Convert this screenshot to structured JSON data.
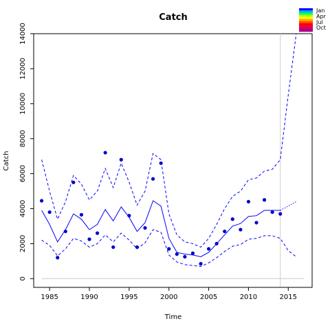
{
  "chart_data": {
    "type": "line",
    "title": "Catch",
    "xlabel": "Time",
    "ylabel": "Catch",
    "xlim": [
      1983,
      2018
    ],
    "ylim": [
      -500,
      14000
    ],
    "x_ticks": [
      1985,
      1990,
      1995,
      2000,
      2005,
      2010,
      2015
    ],
    "y_ticks": [
      0,
      2000,
      4000,
      6000,
      8000,
      10000,
      12000,
      14000
    ],
    "grid": false,
    "reference_lines": {
      "horizontal_y": 0,
      "vertical_x": 2014
    },
    "legend": {
      "placement": "top-right",
      "entries": [
        "Jan",
        "Apr",
        "Jul",
        "Oct"
      ],
      "colors": [
        "#0000ff",
        "#00aaff",
        "#00ff66",
        "#aaff00",
        "#ffff00",
        "#ffaa00",
        "#ff5500",
        "#ff0000",
        "#ee0044",
        "#cc0066",
        "#aa0088"
      ]
    },
    "series": [
      {
        "name": "",
        "style": "points",
        "color": "#0000cc",
        "x": [
          1984,
          1985,
          1986,
          1987,
          1988,
          1989,
          1990,
          1991,
          1992,
          1993,
          1994,
          1995,
          1996,
          1997,
          1998,
          1999,
          2000,
          2001,
          2002,
          2003,
          2004,
          2005,
          2006,
          2007,
          2008,
          2009,
          2010,
          2011,
          2012,
          2013,
          2014
        ],
        "values": [
          4450,
          3800,
          1200,
          2700,
          5500,
          3650,
          2250,
          2600,
          7200,
          1800,
          6800,
          3600,
          1800,
          2900,
          5700,
          6600,
          1700,
          1400,
          1250,
          1450,
          850,
          1700,
          2000,
          2700,
          3400,
          2800,
          4400,
          3200,
          4500,
          3800,
          3700
        ]
      },
      {
        "name": "",
        "style": "solid",
        "color": "#0000ff",
        "x": [
          1984,
          1985,
          1986,
          1987,
          1988,
          1989,
          1990,
          1991,
          1992,
          1993,
          1994,
          1995,
          1996,
          1997,
          1998,
          1999,
          2000,
          2001,
          2002,
          2003,
          2004,
          2005,
          2006,
          2007,
          2008,
          2009,
          2010,
          2011,
          2012,
          2013,
          2014
        ],
        "values": [
          3900,
          3100,
          2100,
          2800,
          3700,
          3400,
          2800,
          3100,
          3950,
          3300,
          4100,
          3500,
          2700,
          3200,
          4450,
          4150,
          2300,
          1500,
          1400,
          1350,
          1250,
          1500,
          2000,
          2500,
          3000,
          3150,
          3550,
          3600,
          3900,
          3900,
          3900
        ]
      },
      {
        "name": "",
        "style": "dashed",
        "color": "#0000ff",
        "x": [
          1984,
          1985,
          1986,
          1987,
          1988,
          1989,
          1990,
          1991,
          1992,
          1993,
          1994,
          1995,
          1996,
          1997,
          1998,
          1999,
          2000,
          2001,
          2002,
          2003,
          2004,
          2005,
          2006,
          2007,
          2008,
          2009,
          2010,
          2011,
          2012,
          2013,
          2014,
          2015,
          2016
        ],
        "values": [
          6800,
          5000,
          3400,
          4400,
          5900,
          5400,
          4500,
          5000,
          6300,
          5200,
          6600,
          5500,
          4200,
          5000,
          7150,
          6800,
          3700,
          2500,
          2100,
          2000,
          1800,
          2300,
          3100,
          4000,
          4700,
          5000,
          5650,
          5750,
          6150,
          6250,
          6800,
          10500,
          14000
        ]
      },
      {
        "name": "",
        "style": "dashed",
        "color": "#0000ff",
        "x": [
          1984,
          1985,
          1986,
          1987,
          1988,
          1989,
          1990,
          1991,
          1992,
          1993,
          1994,
          1995,
          1996,
          1997,
          1998,
          1999,
          2000,
          2001,
          2002,
          2003,
          2004,
          2005,
          2006,
          2007,
          2008,
          2009,
          2010,
          2011,
          2012,
          2013,
          2014,
          2015,
          2016
        ],
        "values": [
          2200,
          1900,
          1300,
          1700,
          2300,
          2150,
          1800,
          2000,
          2500,
          2100,
          2600,
          2200,
          1700,
          2050,
          2800,
          2650,
          1350,
          950,
          800,
          750,
          700,
          900,
          1200,
          1550,
          1850,
          1950,
          2250,
          2300,
          2450,
          2450,
          2300,
          1600,
          1250
        ]
      },
      {
        "name": "",
        "style": "dotted",
        "color": "#0000ff",
        "x": [
          2014,
          2015,
          2016
        ],
        "values": [
          3900,
          4150,
          4400
        ]
      }
    ]
  }
}
